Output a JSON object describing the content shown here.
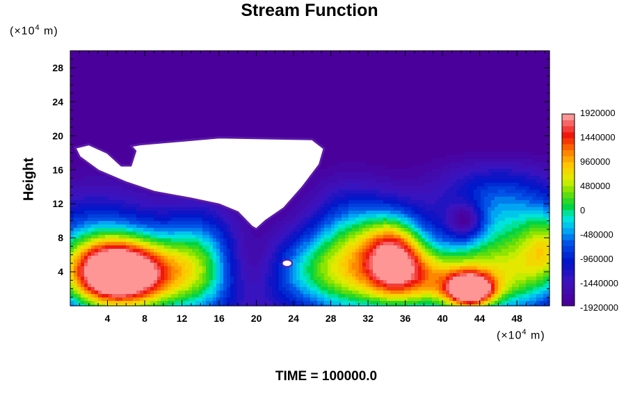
{
  "chart_data": {
    "type": "heatmap",
    "title": "Stream Function",
    "ylabel": "Height",
    "x_unit_prefix": "(×10",
    "x_unit_exp": "4",
    "x_unit_suffix": " m)",
    "y_unit_prefix": "(×10",
    "y_unit_exp": "4",
    "y_unit_suffix": " m)",
    "footer": "TIME = 100000.0",
    "xlim": [
      0,
      51.5
    ],
    "ylim": [
      0,
      30
    ],
    "x_ticks": [
      4,
      8,
      12,
      16,
      20,
      24,
      28,
      32,
      36,
      40,
      44,
      48
    ],
    "y_ticks": [
      4,
      8,
      12,
      16,
      20,
      24,
      28
    ],
    "colorbar": {
      "min": -1920000,
      "max": 1920000,
      "tick_values": [
        1920000,
        1440000,
        960000,
        480000,
        0,
        -480000,
        -960000,
        -1440000,
        -1920000
      ],
      "tick_labels": [
        "1920000",
        "1440000",
        "960000",
        "480000",
        "0",
        "-480000",
        "-960000",
        "-1440000",
        "-1920000"
      ]
    },
    "field": {
      "background": -1920000,
      "features": [
        {
          "x": 5,
          "y": 3.8,
          "sx": 3.6,
          "sy": 2.7,
          "amp": 3150000
        },
        {
          "x": 2.5,
          "y": 6,
          "sx": 5,
          "sy": 5,
          "amp": 1400000
        },
        {
          "x": 10,
          "y": 3,
          "sx": 6,
          "sy": 4,
          "amp": 1300000
        },
        {
          "x": 14,
          "y": 6,
          "sx": 3,
          "sy": 4,
          "amp": 1200000
        },
        {
          "x": 25,
          "y": 5,
          "sx": 3,
          "sy": 3,
          "amp": 900000
        },
        {
          "x": 30,
          "y": 6,
          "sx": 3,
          "sy": 5,
          "amp": 1900000
        },
        {
          "x": 34.8,
          "y": 5.8,
          "sx": 2.4,
          "sy": 3.5,
          "amp": 2900000
        },
        {
          "x": 43,
          "y": 1.8,
          "sx": 1.7,
          "sy": 1.3,
          "amp": 2900000
        },
        {
          "x": 40,
          "y": 3,
          "sx": 4,
          "sy": 3,
          "amp": 2100000
        },
        {
          "x": 48,
          "y": 4,
          "sx": 4,
          "sy": 4,
          "amp": 1900000
        },
        {
          "x": 51.5,
          "y": 7,
          "sx": 2,
          "sy": 3,
          "amp": 1300000
        },
        {
          "x": 27,
          "y": 2,
          "sx": 10,
          "sy": 3,
          "amp": 600000
        },
        {
          "x": 46,
          "y": 12,
          "sx": 5,
          "sy": 4,
          "amp": 1200000
        },
        {
          "x": 42.5,
          "y": 10,
          "sx": 1.3,
          "sy": 1.5,
          "amp": -1100000
        },
        {
          "x": 19,
          "y": 4,
          "sx": 2.5,
          "sy": 3,
          "amp": -700000
        }
      ],
      "blank_region": [
        [
          0.5,
          18.6
        ],
        [
          2,
          19
        ],
        [
          4,
          18
        ],
        [
          5.5,
          16.5
        ],
        [
          6.5,
          16.5
        ],
        [
          7,
          18.2
        ],
        [
          6.5,
          18.8
        ],
        [
          7.5,
          19
        ],
        [
          16,
          19.8
        ],
        [
          26,
          19.6
        ],
        [
          27.3,
          18.5
        ],
        [
          26.8,
          16.6
        ],
        [
          25,
          14
        ],
        [
          23,
          11.5
        ],
        [
          21,
          10
        ],
        [
          20,
          9
        ],
        [
          19.5,
          9.3
        ],
        [
          18,
          11
        ],
        [
          16,
          11.9
        ],
        [
          13,
          12.6
        ],
        [
          9,
          13.4
        ],
        [
          6,
          14.5
        ],
        [
          3,
          15.9
        ],
        [
          1,
          17.5
        ]
      ],
      "blank_spot": {
        "x": 23.3,
        "y": 5.0,
        "r": 0.45
      }
    }
  }
}
